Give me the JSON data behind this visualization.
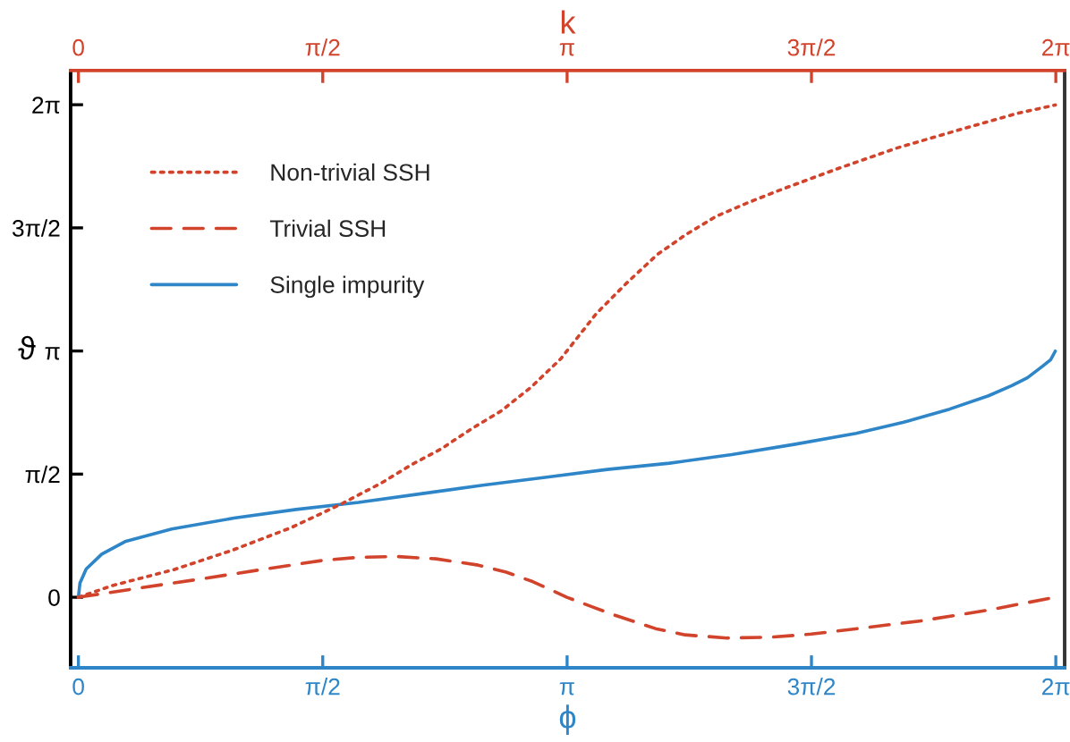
{
  "chart_data": {
    "type": "line",
    "xlabel": "ϕ",
    "x2label": "k",
    "ylabel": "ϑ",
    "legend": "top left",
    "xlim": [
      -0.05,
      6.34
    ],
    "xticks": [
      0,
      {
        "value": 1.5708,
        "label": "π/2"
      },
      {
        "value": 3.1416,
        "label": "π"
      },
      {
        "value": 4.7124,
        "label": "3π/2"
      },
      {
        "value": 6.2832,
        "label": "2π"
      }
    ],
    "x2lim": [
      -0.05,
      6.34
    ],
    "x2ticks": [
      0,
      {
        "value": 1.5708,
        "label": "π/2"
      },
      {
        "value": 3.1416,
        "label": "π"
      },
      {
        "value": 4.7124,
        "label": "3π/2"
      },
      {
        "value": 6.2832,
        "label": "2π"
      }
    ],
    "ylim": [
      -0.9,
      6.72
    ],
    "yticks": [
      0,
      {
        "value": 1.5708,
        "label": "π/2"
      },
      {
        "value": 3.1416,
        "label": "π"
      },
      {
        "value": 4.7124,
        "label": "3π/2"
      },
      {
        "value": 6.2832,
        "label": "2π"
      }
    ],
    "series": [
      {
        "name": "Non-trivial SSH",
        "color": "#d2432c",
        "line_style": "dotted",
        "axis": "x2",
        "x": [
          0,
          0.22,
          0.61,
          0.99,
          1.37,
          1.68,
          1.95,
          2.14,
          2.33,
          2.52,
          2.72,
          2.91,
          3.1,
          3.33,
          3.52,
          3.72,
          3.9,
          4.1,
          4.3,
          4.49,
          4.87,
          5.26,
          5.64,
          6.03,
          6.28
        ],
        "values": [
          0,
          0.15,
          0.35,
          0.6,
          0.89,
          1.18,
          1.46,
          1.69,
          1.89,
          2.14,
          2.38,
          2.68,
          3.04,
          3.62,
          4.0,
          4.37,
          4.62,
          4.86,
          5.03,
          5.18,
          5.46,
          5.73,
          5.95,
          6.17,
          6.28
        ]
      },
      {
        "name": "Trivial SSH",
        "color": "#d2432c",
        "line_style": "dashed",
        "axis": "x2",
        "x": [
          0,
          0.4,
          0.81,
          1.2,
          1.57,
          1.8,
          2.04,
          2.3,
          2.57,
          2.75,
          2.92,
          3.14,
          3.3,
          3.45,
          3.71,
          3.9,
          4.17,
          4.45,
          4.71,
          5.05,
          5.42,
          5.86,
          6.28
        ],
        "values": [
          0,
          0.12,
          0.24,
          0.36,
          0.47,
          0.51,
          0.52,
          0.49,
          0.41,
          0.32,
          0.2,
          0,
          -0.12,
          -0.23,
          -0.4,
          -0.48,
          -0.52,
          -0.51,
          -0.47,
          -0.39,
          -0.3,
          -0.16,
          0
        ]
      },
      {
        "name": "Single impurity",
        "color": "#2e86c8",
        "line_style": "solid",
        "x": [
          0,
          0.01,
          0.05,
          0.15,
          0.3,
          0.6,
          1.0,
          1.4,
          1.8,
          2.2,
          2.6,
          3.0,
          3.4,
          3.8,
          4.2,
          4.6,
          5.0,
          5.3,
          5.6,
          5.85,
          6.0,
          6.1,
          6.2,
          6.25,
          6.28
        ],
        "values": [
          0,
          0.18,
          0.36,
          0.55,
          0.71,
          0.87,
          1.01,
          1.12,
          1.21,
          1.32,
          1.43,
          1.53,
          1.63,
          1.71,
          1.82,
          1.95,
          2.09,
          2.23,
          2.4,
          2.57,
          2.7,
          2.8,
          2.95,
          3.03,
          3.14
        ]
      }
    ]
  }
}
